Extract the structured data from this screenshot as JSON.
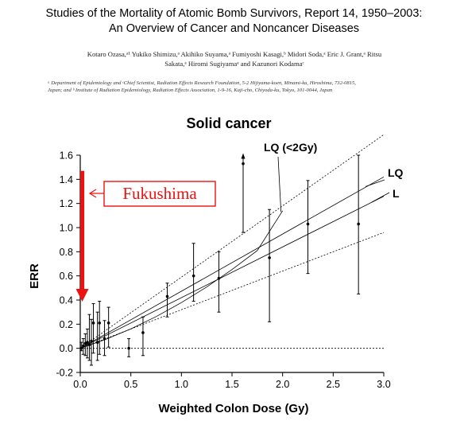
{
  "paper": {
    "title_line1": "Studies of the Mortality of Atomic Bomb Survivors, Report 14, 1950–2003:",
    "title_line2": "An Overview of Cancer and Noncancer Diseases",
    "authors_line1": "Kotaro Ozasa,ᵃ¹ Yukiko Shimizu,ᵃ Akihiko Suyama,ᵃ Fumiyoshi Kasagi,ᵇ Midori Soda,ᵃ Eric J. Grant,ᵃ Ritsu",
    "authors_line2": "Sakata,ᵃ Hiromi Sugiyamaᵃ and Kazunori Kodamaᶜ",
    "affiliation_line1": "ᵃ Department of Epidemiology and ᶜChief Scientist, Radiation Effects Research Foundation, 5-2 Hijiyama-koen, Minami-ku, Hiroshima, 732-0815,",
    "affiliation_line2": "Japan; and ᵇ Institute of Radiation Epidemiology, Radiation Effects Association, 1-9-16, Kaji-cho, Chiyoda-ku, Tokyo, 101-0044, Japan"
  },
  "annotation": {
    "fukushima_label": "Fukushima",
    "fukushima_color": "#ee1111"
  },
  "chart_data": {
    "type": "scatter",
    "title": "Solid cancer",
    "xlabel": "Weighted Colon Dose (Gy)",
    "ylabel": "ERR",
    "xlim": [
      0.0,
      3.0
    ],
    "ylim": [
      -0.2,
      1.6
    ],
    "xticks": [
      "0.0",
      "0.5",
      "1.0",
      "1.5",
      "2.0",
      "2.5",
      "3.0"
    ],
    "yticks": [
      "-0.2",
      "0.0",
      "0.2",
      "0.4",
      "0.6",
      "0.8",
      "1.0",
      "1.2",
      "1.4",
      "1.6"
    ],
    "grid": false,
    "reference_line_y": 0.0,
    "points": [
      {
        "x": 0.01,
        "y": 0.0,
        "lo": -0.02,
        "hi": 0.05
      },
      {
        "x": 0.03,
        "y": 0.02,
        "lo": -0.05,
        "hi": 0.08
      },
      {
        "x": 0.05,
        "y": 0.04,
        "lo": -0.06,
        "hi": 0.12
      },
      {
        "x": 0.07,
        "y": 0.05,
        "lo": -0.08,
        "hi": 0.16
      },
      {
        "x": 0.09,
        "y": 0.03,
        "lo": -0.1,
        "hi": 0.28
      },
      {
        "x": 0.11,
        "y": 0.06,
        "lo": -0.14,
        "hi": 0.24
      },
      {
        "x": 0.13,
        "y": 0.21,
        "lo": -0.04,
        "hi": 0.37
      },
      {
        "x": 0.17,
        "y": 0.05,
        "lo": -0.1,
        "hi": 0.3
      },
      {
        "x": 0.19,
        "y": 0.21,
        "lo": -0.05,
        "hi": 0.39
      },
      {
        "x": 0.24,
        "y": 0.08,
        "lo": -0.06,
        "hi": 0.23
      },
      {
        "x": 0.28,
        "y": 0.21,
        "lo": 0.01,
        "hi": 0.34
      },
      {
        "x": 0.48,
        "y": 0.0,
        "lo": -0.07,
        "hi": 0.08
      },
      {
        "x": 0.62,
        "y": 0.13,
        "lo": -0.06,
        "hi": 0.26
      },
      {
        "x": 0.86,
        "y": 0.43,
        "lo": 0.26,
        "hi": 0.54
      },
      {
        "x": 1.12,
        "y": 0.6,
        "lo": 0.39,
        "hi": 0.87
      },
      {
        "x": 1.37,
        "y": 0.58,
        "lo": 0.3,
        "hi": 0.8
      },
      {
        "x": 1.61,
        "y": 1.53,
        "lo": 0.96,
        "hi": 1.57,
        "arrow_up": true
      },
      {
        "x": 1.87,
        "y": 0.75,
        "lo": 0.22,
        "hi": 1.15
      },
      {
        "x": 2.25,
        "y": 1.03,
        "lo": 0.62,
        "hi": 1.39
      },
      {
        "x": 2.75,
        "y": 1.03,
        "lo": 0.45,
        "hi": 1.6
      }
    ],
    "fits": [
      {
        "name": "L",
        "x": [
          0.0,
          3.0
        ],
        "y": [
          0.0,
          1.26
        ],
        "style": "solid"
      },
      {
        "name": "LQ",
        "x": [
          0.0,
          3.0
        ],
        "y": [
          0.0,
          1.42
        ],
        "style": "solid"
      },
      {
        "name": "LQ (<2Gy)",
        "x": [
          0.0,
          0.25,
          0.5,
          0.75,
          1.0,
          1.25,
          1.5,
          1.75,
          2.0
        ],
        "y": [
          0.0,
          0.0736,
          0.1613,
          0.263,
          0.3787,
          0.5084,
          0.6522,
          0.81,
          1.14
        ],
        "style": "solid"
      },
      {
        "name": "",
        "x": [
          0.0,
          3.0
        ],
        "y": [
          0.0,
          1.77
        ],
        "style": "dashed"
      },
      {
        "name": "",
        "x": [
          0.0,
          3.0
        ],
        "y": [
          0.0,
          0.96
        ],
        "style": "dashed"
      }
    ],
    "series_labels": [
      "LQ (<2Gy)",
      "LQ",
      "L"
    ],
    "annotation_arrow": {
      "from_y": 1.47,
      "to_y": 0.4,
      "x": 0.02
    }
  }
}
